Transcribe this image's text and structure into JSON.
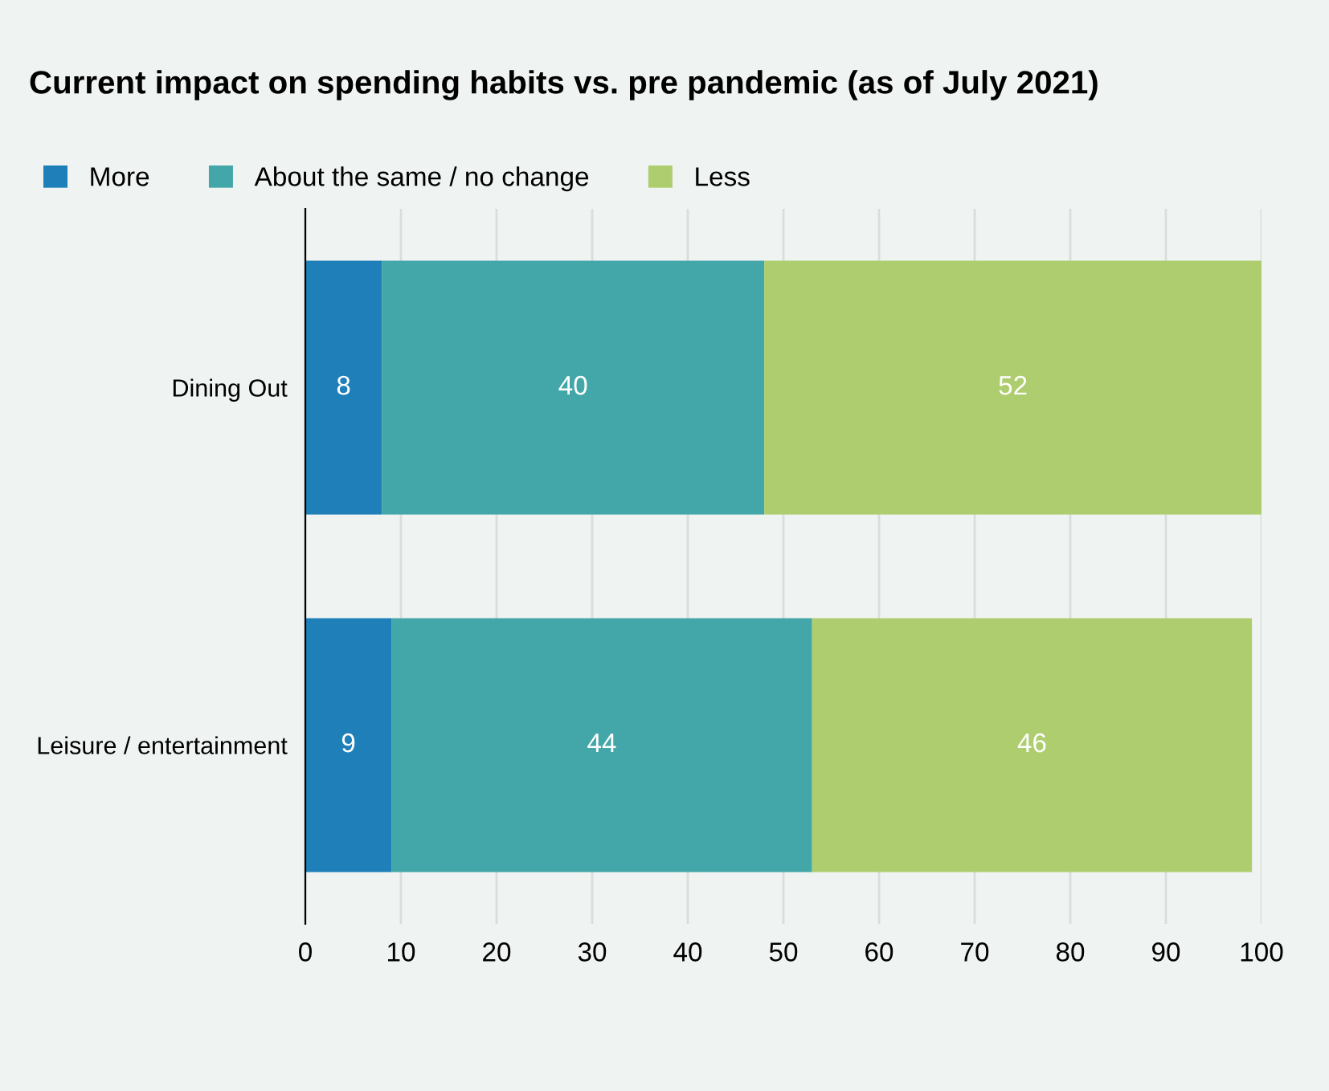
{
  "chart_data": {
    "type": "bar",
    "orientation": "horizontal",
    "stacked": true,
    "title": "Current impact on spending habits vs. pre pandemic (as of July 2021)",
    "categories": [
      "Dining Out",
      "Leisure / entertainment"
    ],
    "series": [
      {
        "name": "More",
        "color": "#1f7fb8",
        "values": [
          8,
          9
        ]
      },
      {
        "name": "About the same / no change",
        "color": "#43a6a8",
        "values": [
          40,
          44
        ]
      },
      {
        "name": "Less",
        "color": "#aecd6e",
        "values": [
          52,
          46
        ]
      }
    ],
    "xlim": [
      0,
      100
    ],
    "xticks": [
      0,
      10,
      20,
      30,
      40,
      50,
      60,
      70,
      80,
      90,
      100
    ],
    "grid": "x",
    "legend": "top left",
    "data_labels": true
  }
}
